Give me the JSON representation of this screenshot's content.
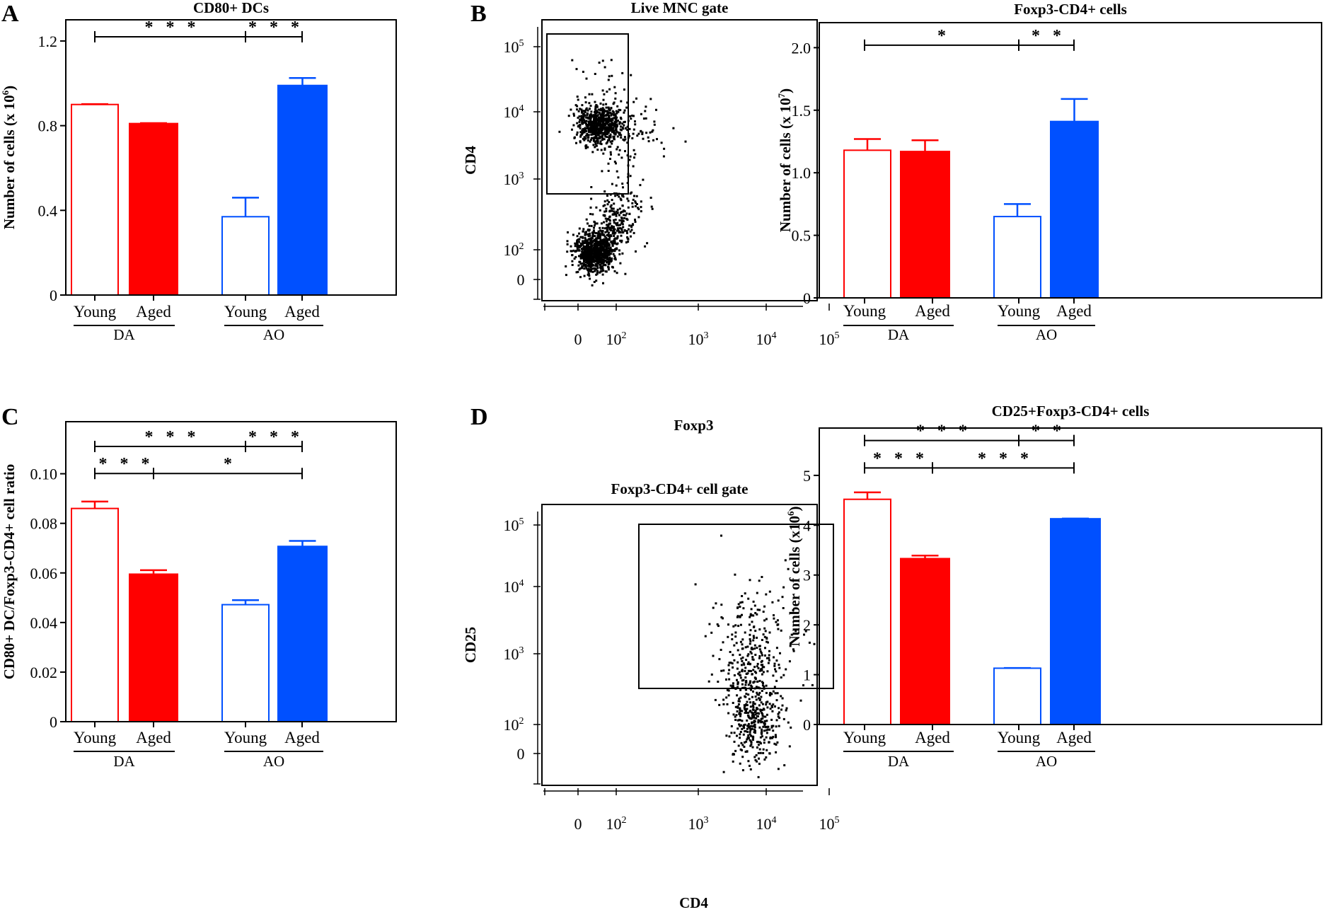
{
  "colors": {
    "red": "#FF0000",
    "blue": "#0050FF",
    "axis": "#000000"
  },
  "panel_letters": [
    "A",
    "B",
    "C",
    "D"
  ],
  "chart_data": [
    {
      "id": "A",
      "type": "bar",
      "title": "CD80+ DCs",
      "ylabel": "Number of cells (x 10^6)",
      "ylabel_text": "Number of cells (x 10",
      "ylabel_sup": "6",
      "ylim": [
        0,
        1.3
      ],
      "yticks": [
        0,
        0.4,
        0.8,
        1.2
      ],
      "ytick_labels": [
        "0",
        "0.4",
        "0.8",
        "1.2"
      ],
      "categories": [
        "Young",
        "Aged",
        "Young",
        "Aged"
      ],
      "groups": [
        {
          "label": "DA",
          "members": [
            0,
            1
          ]
        },
        {
          "label": "AO",
          "members": [
            2,
            3
          ]
        }
      ],
      "values": [
        0.9,
        0.81,
        0.37,
        0.99
      ],
      "errors": [
        0.002,
        0.002,
        0.09,
        0.035
      ],
      "styles": [
        "red-open",
        "red-filled",
        "blue-open",
        "blue-filled"
      ],
      "significance": [
        {
          "from": 0,
          "to": 2,
          "label": "***",
          "level": 1.22
        },
        {
          "from": 2,
          "to": 3,
          "label": "***",
          "level": 1.22
        }
      ]
    },
    {
      "id": "B-flow",
      "type": "scatter",
      "title": "Live MNC gate",
      "xlabel": "Foxp3",
      "ylabel": "CD4",
      "x_tick_labels": [
        "0",
        "10^2",
        "10^3",
        "10^4",
        "10^5"
      ],
      "y_tick_labels": [
        "0",
        "10^2",
        "10^3",
        "10^4",
        "10^5"
      ],
      "scale": "biexponential",
      "populations": [
        {
          "name": "CD4+ Foxp3-",
          "center_x": "~10^1.8",
          "center_y": "~10^3.8"
        },
        {
          "name": "CD4- Foxp3-",
          "center_x": "~10^1.7",
          "center_y": "~10^2"
        }
      ],
      "gate": {
        "x_range": [
          "below 0",
          "~1.5x10^2"
        ],
        "y_range": [
          "~1.8x10^3",
          "~2x10^5"
        ]
      }
    },
    {
      "id": "B",
      "type": "bar",
      "title": "Foxp3-CD4+ cells",
      "ylabel": "Number of cells (x 10^7)",
      "ylabel_text": "Number of cells (x 10",
      "ylabel_sup": "7",
      "ylim": [
        0,
        2.2
      ],
      "yticks": [
        0,
        0.5,
        1.0,
        1.5,
        2.0
      ],
      "ytick_labels": [
        "0",
        "0.5",
        "1.0",
        "1.5",
        "2.0"
      ],
      "categories": [
        "Young",
        "Aged",
        "Young",
        "Aged"
      ],
      "groups": [
        {
          "label": "DA",
          "members": [
            0,
            1
          ]
        },
        {
          "label": "AO",
          "members": [
            2,
            3
          ]
        }
      ],
      "values": [
        1.18,
        1.17,
        0.65,
        1.41
      ],
      "errors": [
        0.09,
        0.09,
        0.1,
        0.18
      ],
      "styles": [
        "red-open",
        "red-filled",
        "blue-open",
        "blue-filled"
      ],
      "significance": [
        {
          "from": 0,
          "to": 2,
          "label": "*",
          "level": 2.02
        },
        {
          "from": 2,
          "to": 3,
          "label": "**",
          "level": 2.02
        }
      ]
    },
    {
      "id": "C",
      "type": "bar",
      "title": "",
      "ylabel": "CD80+ DC/Foxp3-CD4+ cell ratio",
      "ylabel_text": "CD80+ DC/Foxp3-CD4+ cell ratio",
      "ylabel_sup": "",
      "ylim": [
        0,
        0.121
      ],
      "yticks": [
        0,
        0.02,
        0.04,
        0.06,
        0.08,
        0.1
      ],
      "ytick_labels": [
        "0",
        "0.02",
        "0.04",
        "0.06",
        "0.08",
        "0.10"
      ],
      "categories": [
        "Young",
        "Aged",
        "Young",
        "Aged"
      ],
      "groups": [
        {
          "label": "DA",
          "members": [
            0,
            1
          ]
        },
        {
          "label": "AO",
          "members": [
            2,
            3
          ]
        }
      ],
      "values": [
        0.086,
        0.0595,
        0.0472,
        0.0707
      ],
      "errors": [
        0.0028,
        0.0016,
        0.0018,
        0.0022
      ],
      "styles": [
        "red-open",
        "red-filled",
        "blue-open",
        "blue-filled"
      ],
      "significance": [
        {
          "from": 0,
          "to": 2,
          "label": "***",
          "level": 0.111
        },
        {
          "from": 2,
          "to": 3,
          "label": "***",
          "level": 0.111
        },
        {
          "from": 0,
          "to": 1,
          "label": "***",
          "level": 0.1001
        },
        {
          "from": 1,
          "to": 3,
          "label": "*",
          "level": 0.1001
        }
      ]
    },
    {
      "id": "D-flow",
      "type": "scatter",
      "title": "Foxp3-CD4+ cell gate",
      "xlabel": "CD4",
      "ylabel": "CD25",
      "x_tick_labels": [
        "0",
        "10^2",
        "10^3",
        "10^4",
        "10^5"
      ],
      "y_tick_labels": [
        "0",
        "10^2",
        "10^3",
        "10^4",
        "10^5"
      ],
      "scale": "biexponential",
      "populations": [
        {
          "name": "CD4+ cells",
          "center_x": "~5x10^3",
          "center_y": "~2x10^2"
        }
      ],
      "gate": {
        "x_range": [
          "~2x10^2",
          "~1.5x10^5"
        ],
        "y_range": [
          "~3.3x10^2",
          "10^5"
        ]
      }
    },
    {
      "id": "D",
      "type": "bar",
      "title": "CD25+Foxp3-CD4+ cells",
      "ylabel": "Number of cells (x10^6)",
      "ylabel_text": "Number of cells (x10",
      "ylabel_sup": "6",
      "ylim": [
        0,
        5.95
      ],
      "yticks": [
        0,
        1,
        2,
        3,
        4,
        5
      ],
      "ytick_labels": [
        "0",
        "1",
        "2",
        "3",
        "4",
        "5"
      ],
      "categories": [
        "Young",
        "Aged",
        "Young",
        "Aged"
      ],
      "groups": [
        {
          "label": "DA",
          "members": [
            0,
            1
          ]
        },
        {
          "label": "AO",
          "members": [
            2,
            3
          ]
        }
      ],
      "values": [
        4.52,
        3.33,
        1.13,
        4.13
      ],
      "errors": [
        0.14,
        0.06,
        0.005,
        0.005
      ],
      "styles": [
        "red-open",
        "red-filled",
        "blue-open",
        "blue-filled"
      ],
      "significance": [
        {
          "from": 0,
          "to": 2,
          "label": "***",
          "level": 5.7
        },
        {
          "from": 2,
          "to": 3,
          "label": "**",
          "level": 5.7
        },
        {
          "from": 0,
          "to": 1,
          "label": "***",
          "level": 5.15
        },
        {
          "from": 1,
          "to": 3,
          "label": "***",
          "level": 5.15
        }
      ]
    }
  ]
}
